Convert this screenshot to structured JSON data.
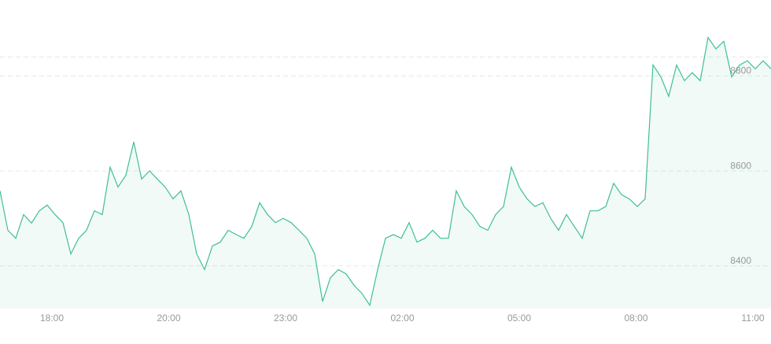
{
  "chart_data": {
    "type": "area",
    "values": [
      8558,
      8475,
      8458,
      8508,
      8490,
      8516,
      8528,
      8508,
      8491,
      8425,
      8458,
      8475,
      8516,
      8508,
      8608,
      8566,
      8591,
      8661,
      8583,
      8600,
      8583,
      8566,
      8541,
      8558,
      8508,
      8425,
      8392,
      8442,
      8450,
      8475,
      8466,
      8458,
      8483,
      8533,
      8508,
      8491,
      8500,
      8491,
      8475,
      8458,
      8425,
      8325,
      8375,
      8392,
      8383,
      8359,
      8342,
      8317,
      8392,
      8458,
      8466,
      8458,
      8491,
      8450,
      8458,
      8475,
      8458,
      8458,
      8558,
      8525,
      8508,
      8483,
      8475,
      8508,
      8525,
      8608,
      8566,
      8541,
      8525,
      8533,
      8500,
      8475,
      8508,
      8483,
      8458,
      8516,
      8516,
      8525,
      8574,
      8550,
      8541,
      8525,
      8541,
      8823,
      8798,
      8757,
      8823,
      8790,
      8807,
      8790,
      8881,
      8857,
      8873,
      8798,
      8823,
      8832,
      8815,
      8832,
      8815
    ],
    "color": "#3fbf92",
    "x_labels": [
      "18:00",
      "20:00",
      "23:00",
      "02:00",
      "05:00",
      "08:00",
      "11:00"
    ],
    "ylim": [
      8310,
      8960
    ],
    "yticks": [
      8400,
      8600,
      8800
    ],
    "grid": true,
    "price_line": 8840
  }
}
